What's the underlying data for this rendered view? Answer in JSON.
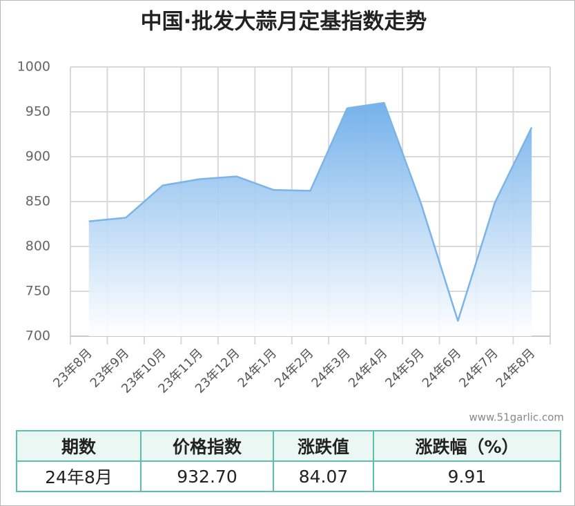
{
  "chart_data": {
    "type": "area",
    "title": "中国·批发大蒜月定基指数走势",
    "categories": [
      "23年8月",
      "23年9月",
      "23年10月",
      "23年11月",
      "23年12月",
      "24年1月",
      "24年2月",
      "24年3月",
      "24年4月",
      "24年5月",
      "24年6月",
      "24年7月",
      "24年8月"
    ],
    "series": [
      {
        "name": "价格指数",
        "color": "#7ab4e8",
        "values": [
          828,
          832,
          868,
          875,
          878,
          863,
          862,
          954,
          960,
          848,
          717,
          848.63,
          932.7
        ]
      }
    ],
    "ylim": [
      700,
      1000
    ],
    "yticks": [
      700,
      750,
      800,
      850,
      900,
      950,
      1000
    ],
    "grid": true,
    "source": "www.51garlic.com"
  },
  "table": {
    "header": [
      "期数",
      "价格指数",
      "涨跌值",
      "涨跌幅（%）"
    ],
    "rows": [
      [
        "24年8月",
        "932.70",
        "84.07",
        "9.91"
      ]
    ]
  }
}
